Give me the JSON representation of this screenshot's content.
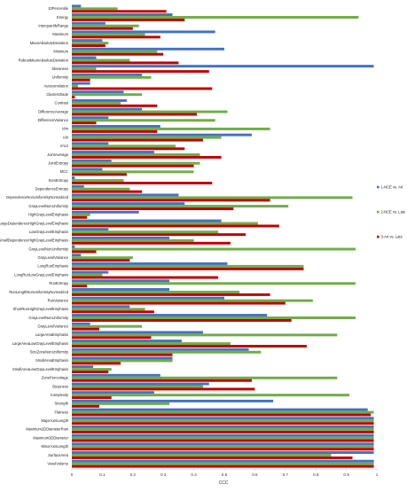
{
  "chart_data": {
    "type": "bar",
    "orientation": "horizontal",
    "xlabel": "CCC",
    "xlim": [
      0,
      1
    ],
    "x_ticks": [
      "0",
      "0.1",
      "0.2",
      "0.3",
      "0.4",
      "0.5",
      "0.6",
      "0.7",
      "0.8",
      "0.9",
      "1"
    ],
    "legend_position": "right",
    "grid": false,
    "categories": [
      "10Percentile",
      "Energy",
      "InterquartileRange",
      "Maximum",
      "MeanAbsoluteDeviation",
      "Minimum",
      "RobustMeanAbsoluteDeviation",
      "Skewness",
      "Uniformity",
      "Autocorrelation",
      "ClusterShade",
      "Contrast",
      "DifferenceAverage",
      "DifferenceVariance",
      "Idm",
      "Idn",
      "Imc2",
      "JointAverage",
      "JointEntropy",
      "MCC",
      "SumEntropy",
      "DependenceEntropy",
      "DependenceNonUniformityNormalized",
      "GrayLevelNonUniformity",
      "HighGrayLevelEmphasis",
      "LargeDependenceHighGrayLevelEmphasis",
      "LowGrayLevelEmphasis",
      "SmallDependenceHighGrayLevelEmphasis",
      "GrayLevelNonUniformity",
      "GrayLevelVariance",
      "LongRunEmphasis",
      "LongRunLowGrayLevelEmphasis",
      "RunEntropy",
      "RunLengthNonUniformityNormalized",
      "RunVariance",
      "ShortRunHighGrayLevelEmphasis",
      "GrayLevelNonUniformity",
      "GrayLevelVariance",
      "LargeAreaEmphasis",
      "LargeAreaLowGrayLevelEmphasis",
      "SizeZoneNonUniformity",
      "SmallAreaEmphasis",
      "SmallAreaLowGrayLevelEmphasis",
      "ZonePercentage",
      "Busyness",
      "Complexity",
      "Strength",
      "Flatness",
      "MajorAxisLength",
      "Maximum2DDiameterRow",
      "Maximum3DDiameter",
      "MinorAxisLength",
      "SurfaceArea",
      "VoxelVolume"
    ],
    "series": [
      {
        "name": "1-NCE vs. Art",
        "color": "#4472C4",
        "values": [
          0.03,
          0.33,
          0.11,
          0.47,
          0.1,
          0.5,
          0.08,
          0.99,
          0.23,
          0.06,
          0.17,
          0.18,
          0.23,
          0.12,
          0.29,
          0.59,
          0.12,
          0.27,
          0.13,
          0.1,
          0.01,
          0.04,
          0.35,
          0.37,
          0.22,
          0.49,
          0.12,
          0.32,
          0.01,
          0.03,
          0.51,
          0.12,
          0.32,
          0.32,
          0.5,
          0.19,
          0.64,
          0.06,
          0.43,
          0.36,
          0.58,
          0.33,
          0.07,
          0.29,
          0.45,
          0.27,
          0.66,
          0.97,
          0.99,
          0.99,
          0.99,
          0.99,
          0.99,
          0.99
        ]
      },
      {
        "name": "2-NCE vs. Late",
        "color": "#70AD47",
        "values": [
          0.15,
          0.94,
          0.22,
          0.24,
          0.12,
          0.28,
          0.19,
          0.08,
          0.26,
          0.02,
          0.23,
          0.16,
          0.51,
          0.47,
          0.65,
          0.49,
          0.34,
          0.42,
          0.42,
          0.4,
          0.17,
          0.19,
          0.92,
          0.71,
          0.06,
          0.61,
          0.48,
          0.4,
          0.93,
          0.2,
          0.76,
          0.1,
          0.93,
          0.55,
          0.79,
          0.24,
          0.93,
          0.23,
          0.87,
          0.52,
          0.62,
          0.33,
          0.13,
          0.87,
          0.43,
          0.91,
          0.32,
          0.99,
          0.99,
          0.99,
          0.99,
          0.99,
          0.85,
          0.99
        ]
      },
      {
        "name": "3-Art vs. Late",
        "color": "#C00000",
        "values": [
          0.31,
          0.37,
          0.2,
          0.29,
          0.11,
          0.3,
          0.35,
          0.45,
          0.06,
          0.46,
          0.01,
          0.28,
          0.41,
          0.08,
          0.28,
          0.43,
          0.37,
          0.49,
          0.4,
          0.18,
          0.46,
          0.23,
          0.65,
          0.53,
          0.05,
          0.68,
          0.57,
          0.52,
          0.08,
          0.19,
          0.76,
          0.48,
          0.05,
          0.65,
          0.7,
          0.27,
          0.72,
          0.09,
          0.26,
          0.77,
          0.33,
          0.16,
          0.12,
          0.59,
          0.6,
          0.13,
          0.09,
          0.98,
          0.99,
          0.99,
          0.99,
          0.99,
          0.92,
          0.99
        ]
      }
    ]
  }
}
